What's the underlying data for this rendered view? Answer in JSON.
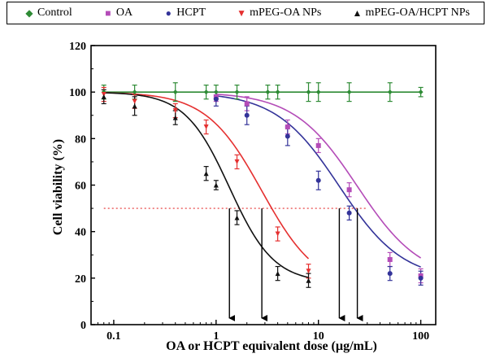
{
  "chart_data": {
    "type": "line",
    "title": "",
    "xlabel": "OA or HCPT equivalent dose (µg/mL)",
    "ylabel": "Cell viability (%)",
    "xscale": "log",
    "xlim": [
      0.06,
      140
    ],
    "ylim": [
      0,
      120
    ],
    "x_ticks": [
      0.1,
      1,
      10,
      100
    ],
    "x_tick_labels": [
      "0.1",
      "1",
      "10",
      "100"
    ],
    "y_ticks": [
      0,
      20,
      40,
      60,
      80,
      100,
      120
    ],
    "y_tick_labels": [
      "0",
      "20",
      "40",
      "60",
      "80",
      "100",
      "120"
    ],
    "legend_position": "top",
    "series": [
      {
        "name": "Control",
        "color": "#2e8b35",
        "marker": "diamond",
        "x": [
          0.08,
          0.16,
          0.4,
          0.8,
          1.0,
          1.6,
          3.2,
          4.0,
          8.0,
          10,
          20,
          50,
          100
        ],
        "y": [
          100,
          100,
          100,
          100,
          100,
          100,
          100,
          100,
          100,
          100,
          100,
          100,
          100
        ],
        "err": [
          3,
          3,
          4,
          3,
          3,
          3,
          3,
          3,
          4,
          4,
          4,
          4,
          2
        ],
        "fit": {
          "bottom": 100,
          "top": 100,
          "ic50": 1,
          "hill": 1,
          "x_from": 0.08,
          "x_to": 100
        }
      },
      {
        "name": "OA",
        "color": "#b44cb8",
        "marker": "square",
        "x": [
          1.0,
          2.0,
          5.0,
          10,
          20,
          50,
          100
        ],
        "y": [
          98,
          95,
          85,
          77,
          58,
          28,
          21
        ],
        "err": [
          2,
          3,
          3,
          3,
          3,
          3,
          3
        ],
        "fit": {
          "bottom": 19,
          "top": 100,
          "ic50": 24,
          "hill": 1.4,
          "x_from": 1.0,
          "x_to": 100
        }
      },
      {
        "name": "HCPT",
        "color": "#333399",
        "marker": "circle",
        "x": [
          1.0,
          2.0,
          5.0,
          10,
          20,
          50,
          100
        ],
        "y": [
          97,
          90,
          81,
          62,
          48,
          22,
          20
        ],
        "err": [
          3,
          4,
          4,
          4,
          3,
          3,
          3
        ],
        "fit": {
          "bottom": 19,
          "top": 100,
          "ic50": 16,
          "hill": 1.4,
          "x_from": 1.0,
          "x_to": 100
        }
      },
      {
        "name": "mPEG-OA NPs",
        "color": "#e53030",
        "marker": "triangle-down",
        "x": [
          0.08,
          0.16,
          0.4,
          0.8,
          1.6,
          4.0,
          8.0
        ],
        "y": [
          99,
          96,
          92,
          85,
          70,
          39,
          23
        ],
        "err": [
          3,
          3,
          3,
          3,
          3,
          3,
          3
        ],
        "fit": {
          "bottom": 15,
          "top": 100,
          "ic50": 2.8,
          "hill": 1.6,
          "x_from": 0.08,
          "x_to": 8.0
        }
      },
      {
        "name": "mPEG-OA/HCPT NPs",
        "color": "#111111",
        "marker": "triangle-up",
        "x": [
          0.08,
          0.16,
          0.4,
          0.8,
          1.0,
          1.6,
          4.0,
          8.0
        ],
        "y": [
          98,
          94,
          89,
          65,
          60,
          46,
          22,
          19
        ],
        "err": [
          3,
          4,
          3,
          3,
          2,
          3,
          3,
          3
        ],
        "fit": {
          "bottom": 18,
          "top": 100,
          "ic50": 1.35,
          "hill": 2.0,
          "x_from": 0.08,
          "x_to": 8.0
        }
      }
    ],
    "reference_line": {
      "y": 50,
      "x_from": 0.08,
      "x_to": 30,
      "color": "#e53030",
      "style": "dotted"
    },
    "ic50_arrows": [
      1.35,
      2.8,
      16,
      24
    ]
  }
}
